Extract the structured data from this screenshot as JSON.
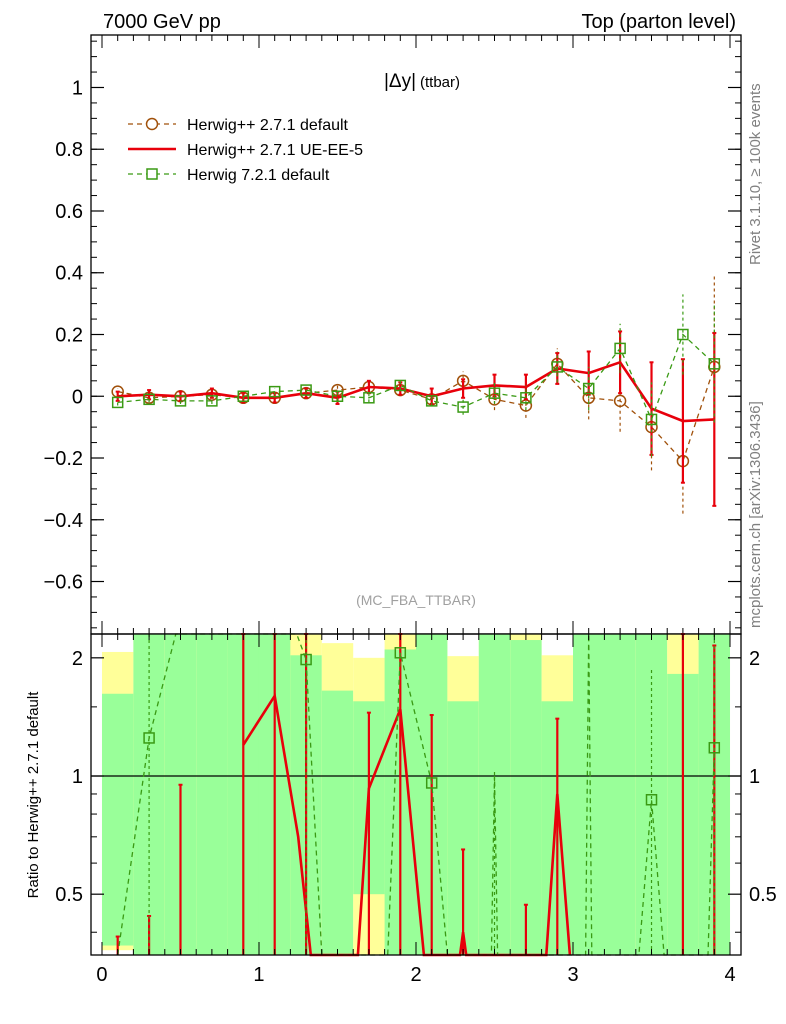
{
  "header": {
    "left_label": "7000 GeV pp",
    "right_label": "Top (parton level)"
  },
  "side": {
    "rivet_label": "Rivet 3.1.10, ≥ 100k events",
    "mcplots_label": "mcplots.cern.ch [arXiv:1306.3436]"
  },
  "chart_data": [
    {
      "type": "line",
      "title_main": "|Δy|",
      "title_sub": "(ttbar)",
      "analysis_label": "(MC_FBA_TTBAR)",
      "legend_position": "top-left",
      "xlim": [
        -0.07,
        4.07
      ],
      "ylim": [
        -0.77,
        1.17
      ],
      "yticks": [
        -0.6,
        -0.4,
        -0.2,
        0,
        0.2,
        0.4,
        0.6,
        0.8,
        1
      ],
      "ytick_labels": [
        "−0.6",
        "−0.4",
        "−0.2",
        "0",
        "0.2",
        "0.4",
        "0.6",
        "0.8",
        "1"
      ],
      "x": [
        0.1,
        0.3,
        0.5,
        0.7,
        0.9,
        1.1,
        1.3,
        1.5,
        1.7,
        1.9,
        2.1,
        2.3,
        2.5,
        2.7,
        2.9,
        3.1,
        3.3,
        3.5,
        3.7,
        3.9
      ],
      "series": [
        {
          "name": "Herwig++ 2.7.1 default",
          "color": "#a0500a",
          "marker": "circle",
          "dash": true,
          "values": [
            0.015,
            -0.005,
            0.0,
            0.005,
            -0.005,
            -0.005,
            0.01,
            0.02,
            0.03,
            0.02,
            -0.01,
            0.05,
            -0.01,
            -0.03,
            0.105,
            -0.005,
            -0.015,
            -0.1,
            -0.21,
            0.095
          ],
          "errors": [
            0.01,
            0.01,
            0.01,
            0.01,
            0.01,
            0.01,
            0.01,
            0.015,
            0.015,
            0.015,
            0.015,
            0.03,
            0.035,
            0.04,
            0.05,
            0.07,
            0.1,
            0.14,
            0.17,
            0.3
          ]
        },
        {
          "name": "Herwig++ 2.7.1 UE-EE-5",
          "color": "#e8000b",
          "marker": "none",
          "dash": false,
          "values": [
            0.0,
            0.005,
            0.0,
            0.01,
            -0.005,
            -0.005,
            0.01,
            -0.005,
            0.03,
            0.025,
            0.0,
            0.025,
            0.035,
            0.03,
            0.09,
            0.075,
            0.11,
            -0.04,
            -0.08,
            -0.075
          ],
          "errors": [
            0.015,
            0.015,
            0.015,
            0.015,
            0.015,
            0.015,
            0.015,
            0.02,
            0.02,
            0.02,
            0.025,
            0.03,
            0.035,
            0.04,
            0.05,
            0.07,
            0.1,
            0.15,
            0.2,
            0.28
          ]
        },
        {
          "name": "Herwig 7.2.1 default",
          "color": "#3a9a14",
          "marker": "square",
          "dash": true,
          "values": [
            -0.02,
            -0.01,
            -0.015,
            -0.015,
            0.0,
            0.015,
            0.02,
            0.0,
            -0.005,
            0.035,
            -0.015,
            -0.035,
            0.01,
            -0.005,
            0.095,
            0.025,
            0.155,
            -0.075,
            0.2,
            0.105
          ],
          "errors": [
            0.01,
            0.01,
            0.01,
            0.01,
            0.01,
            0.01,
            0.01,
            0.015,
            0.015,
            0.015,
            0.015,
            0.025,
            0.035,
            0.04,
            0.05,
            0.07,
            0.08,
            0.12,
            0.13,
            0.19
          ]
        }
      ]
    },
    {
      "type": "line",
      "ylabel": "Ratio to Herwig++ 2.7.1 default",
      "xlabel": "",
      "xlim": [
        -0.07,
        4.07
      ],
      "ylim": [
        0.35,
        2.3
      ],
      "yscale": "log",
      "yticks": [
        0.5,
        1,
        2
      ],
      "ytick_labels": [
        "0.5",
        "1",
        "2"
      ],
      "xticks": [
        0,
        1,
        2,
        3,
        4
      ],
      "xtick_labels": [
        "0",
        "1",
        "2",
        "3",
        "4"
      ],
      "reference_value": 1,
      "band_colors": {
        "one_sigma": "#99ff99",
        "two_sigma": "#ffff99"
      },
      "bands": [
        {
          "x0": 0.0,
          "x1": 0.2,
          "inner": [
            0.37,
            1.62
          ],
          "outer": [
            0.36,
            2.07
          ]
        },
        {
          "x0": 0.2,
          "x1": 0.4,
          "inner": [
            0.35,
            2.3
          ],
          "outer": [
            0.35,
            2.3
          ]
        },
        {
          "x0": 0.4,
          "x1": 0.6,
          "inner": [
            0.35,
            2.3
          ],
          "outer": [
            0.35,
            2.3
          ]
        },
        {
          "x0": 0.6,
          "x1": 0.8,
          "inner": [
            0.35,
            2.3
          ],
          "outer": [
            0.35,
            2.3
          ]
        },
        {
          "x0": 0.8,
          "x1": 1.0,
          "inner": [
            0.35,
            2.3
          ],
          "outer": [
            0.35,
            2.3
          ]
        },
        {
          "x0": 1.0,
          "x1": 1.2,
          "inner": [
            0.35,
            2.3
          ],
          "outer": [
            0.35,
            2.3
          ]
        },
        {
          "x0": 1.2,
          "x1": 1.4,
          "inner": [
            0.35,
            2.03
          ],
          "outer": [
            0.35,
            2.3
          ]
        },
        {
          "x0": 1.4,
          "x1": 1.6,
          "inner": [
            0.35,
            1.65
          ],
          "outer": [
            0.35,
            2.18
          ]
        },
        {
          "x0": 1.6,
          "x1": 1.8,
          "inner": [
            0.5,
            1.55
          ],
          "outer": [
            0.35,
            2.0
          ]
        },
        {
          "x0": 1.8,
          "x1": 2.0,
          "inner": [
            0.35,
            2.1
          ],
          "outer": [
            0.35,
            2.3
          ]
        },
        {
          "x0": 2.0,
          "x1": 2.2,
          "inner": [
            0.35,
            2.3
          ],
          "outer": [
            0.35,
            2.3
          ]
        },
        {
          "x0": 2.2,
          "x1": 2.4,
          "inner": [
            0.35,
            1.55
          ],
          "outer": [
            0.35,
            2.02
          ]
        },
        {
          "x0": 2.4,
          "x1": 2.6,
          "inner": [
            0.35,
            2.3
          ],
          "outer": [
            0.35,
            2.3
          ]
        },
        {
          "x0": 2.6,
          "x1": 2.8,
          "inner": [
            0.35,
            2.22
          ],
          "outer": [
            0.35,
            2.3
          ]
        },
        {
          "x0": 2.8,
          "x1": 3.0,
          "inner": [
            0.35,
            1.55
          ],
          "outer": [
            0.35,
            2.03
          ]
        },
        {
          "x0": 3.0,
          "x1": 3.4,
          "inner": [
            0.35,
            2.3
          ],
          "outer": [
            0.35,
            2.3
          ]
        },
        {
          "x0": 3.4,
          "x1": 3.6,
          "inner": [
            0.35,
            2.3
          ],
          "outer": [
            0.35,
            2.3
          ]
        },
        {
          "x0": 3.6,
          "x1": 3.8,
          "inner": [
            0.35,
            1.82
          ],
          "outer": [
            0.35,
            2.3
          ]
        },
        {
          "x0": 3.8,
          "x1": 4.0,
          "inner": [
            0.35,
            2.3
          ],
          "outer": [
            0.35,
            2.3
          ]
        }
      ],
      "series": [
        {
          "name": "Herwig++ 2.7.1 UE-EE-5",
          "color": "#e8000b",
          "dash": false,
          "x": [
            0.9,
            1.1,
            1.3,
            1.7,
            1.9,
            2.3,
            2.9
          ],
          "values": [
            1.2,
            1.6,
            0.25,
            0.93,
            1.48,
            0.4,
            0.9
          ],
          "line_points": [
            [
              0.9,
              1.2
            ],
            [
              1.1,
              1.6
            ],
            [
              1.25,
              0.7
            ],
            [
              1.33,
              0.35
            ],
            [
              1.63,
              0.35
            ],
            [
              1.7,
              0.93
            ],
            [
              1.9,
              1.48
            ],
            [
              2.05,
              0.35
            ],
            [
              2.28,
              0.35
            ],
            [
              2.3,
              0.4
            ],
            [
              2.32,
              0.35
            ],
            [
              2.83,
              0.35
            ],
            [
              2.9,
              0.9
            ],
            [
              2.98,
              0.35
            ]
          ],
          "error_bars": [
            {
              "x": 0.1,
              "lo": 0.35,
              "hi": 0.39
            },
            {
              "x": 0.3,
              "lo": 0.35,
              "hi": 0.44
            },
            {
              "x": 0.5,
              "lo": 0.35,
              "hi": 0.95
            },
            {
              "x": 0.9,
              "lo": 0.35,
              "hi": 2.3
            },
            {
              "x": 1.1,
              "lo": 0.35,
              "hi": 2.3
            },
            {
              "x": 1.3,
              "lo": 0.35,
              "hi": 2.3
            },
            {
              "x": 1.7,
              "lo": 0.35,
              "hi": 1.45
            },
            {
              "x": 1.9,
              "lo": 0.35,
              "hi": 2.3
            },
            {
              "x": 2.1,
              "lo": 0.35,
              "hi": 1.43
            },
            {
              "x": 2.3,
              "lo": 0.35,
              "hi": 0.65
            },
            {
              "x": 2.7,
              "lo": 0.35,
              "hi": 0.47
            },
            {
              "x": 2.9,
              "lo": 0.35,
              "hi": 1.4
            },
            {
              "x": 3.7,
              "lo": 0.35,
              "hi": 2.3
            },
            {
              "x": 3.9,
              "lo": 0.35,
              "hi": 2.15
            }
          ]
        },
        {
          "name": "Herwig 7.2.1 default",
          "color": "#3a9a14",
          "dash": true,
          "x": [
            0.3,
            1.3,
            1.9,
            2.1,
            3.5,
            3.9
          ],
          "values": [
            1.25,
            1.98,
            2.06,
            0.96,
            0.87,
            1.18
          ],
          "line_points": [
            [
              0.1,
              0.35
            ],
            [
              0.3,
              1.25
            ],
            [
              0.47,
              2.3
            ],
            [
              1.24,
              2.3
            ],
            [
              1.3,
              1.98
            ],
            [
              1.4,
              0.35
            ],
            [
              1.82,
              0.35
            ],
            [
              1.9,
              2.06
            ],
            [
              2.1,
              0.96
            ],
            [
              2.2,
              0.35
            ],
            [
              2.48,
              0.35
            ],
            [
              2.5,
              1.0
            ],
            [
              2.52,
              0.35
            ],
            [
              3.08,
              0.35
            ],
            [
              3.1,
              2.3
            ],
            [
              3.12,
              0.35
            ],
            [
              3.42,
              0.35
            ],
            [
              3.5,
              0.87
            ],
            [
              3.58,
              0.35
            ],
            [
              3.86,
              0.35
            ],
            [
              3.9,
              1.18
            ]
          ],
          "error_bars": [
            {
              "x": 0.3,
              "lo": 0.35,
              "hi": 2.3
            },
            {
              "x": 1.3,
              "lo": 0.35,
              "hi": 2.3
            },
            {
              "x": 2.5,
              "lo": 0.35,
              "hi": 1.04
            },
            {
              "x": 3.5,
              "lo": 0.35,
              "hi": 1.88
            },
            {
              "x": 3.9,
              "lo": 0.35,
              "hi": 2.3
            }
          ]
        }
      ]
    }
  ]
}
